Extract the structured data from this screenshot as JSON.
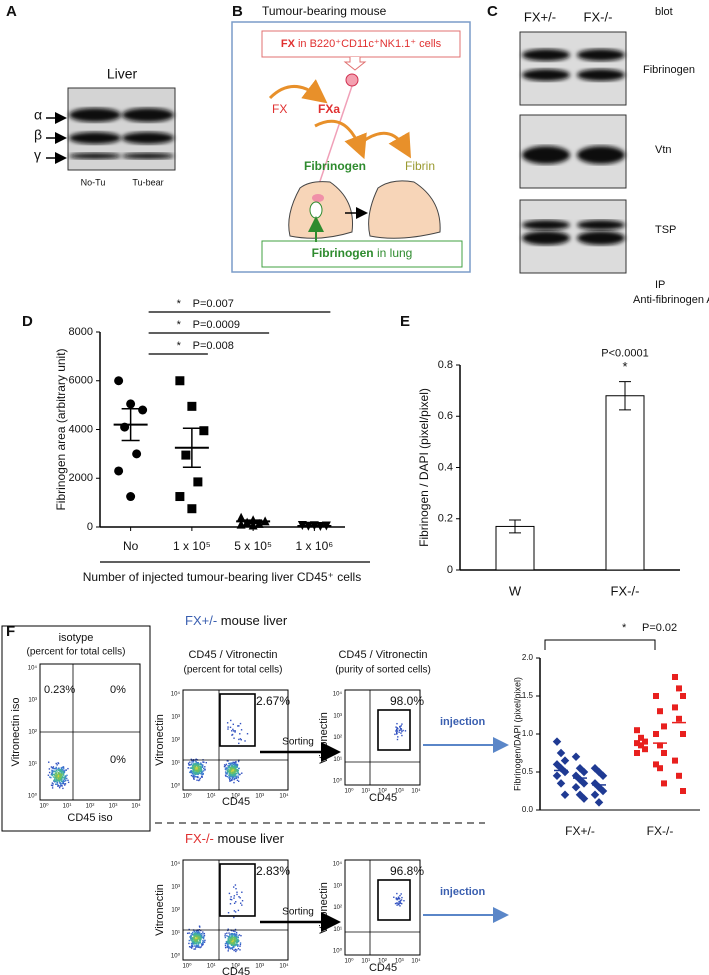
{
  "panel_labels": [
    "A",
    "B",
    "C",
    "D",
    "E",
    "F"
  ],
  "panel_a": {
    "title": "Liver",
    "bands": [
      "α",
      "β",
      "γ"
    ],
    "lanes": [
      "No-Tu",
      "Tu-bear"
    ]
  },
  "panel_b": {
    "title": "Tumour-bearing mouse",
    "cells_box": [
      "FX",
      " in B220⁺CD11c⁺NK1.1⁺ cells"
    ],
    "fx": "FX",
    "fxa": "FXa",
    "fibrinogen": "Fibrinogen",
    "fibrin": "Fibrin",
    "lung_box": [
      "Fibrinogen",
      " in lung"
    ]
  },
  "panel_c": {
    "lanes": [
      "FX+/-",
      "FX-/-"
    ],
    "blot": "blot",
    "proteins": [
      "Fibrinogen",
      "Vtn",
      "TSP"
    ],
    "ip": "IP",
    "antibody": "Anti-fibrinogen Ab"
  },
  "panel_f_flow": {
    "isotype": {
      "title": "isotype",
      "subtitle": "(percent for total cells)",
      "quadrants": [
        "0.23%",
        "0%",
        "0%"
      ],
      "ylabel": "Vitronectin iso",
      "xlabel": "CD45 iso"
    },
    "axis_ticks": [
      "10⁰",
      "10¹",
      "10²",
      "10³",
      "10⁴"
    ],
    "rows": [
      {
        "genotype": "FX+/-",
        "suffix": " mouse liver",
        "gate": "2.67%",
        "purity": "98.0%"
      },
      {
        "genotype": "FX-/-",
        "suffix": " mouse liver",
        "gate": "2.83%",
        "purity": "96.8%"
      }
    ],
    "plot_title": "CD45 / Vitronectin",
    "total_note": "(percent for total cells)",
    "purity_note": "(purity of sorted cells)",
    "sorting": "Sorting",
    "injection": "injection",
    "ylabel": "Vitronectin",
    "xlabel": "CD45"
  },
  "chart_data": [
    {
      "type": "dot-mean-sem",
      "ylabel": "Fibrinogen area (arbitrary unit)",
      "xlabel": "Number of injected tumour-bearing liver CD45⁺ cells",
      "categories": [
        "No",
        "1 x 10⁵",
        "5 x 10⁵",
        "1 x 10⁶"
      ],
      "points": [
        [
          6000,
          5050,
          4800,
          4100,
          3000,
          2300,
          1250
        ],
        [
          6000,
          4950,
          3950,
          2950,
          1850,
          1250,
          750
        ],
        [
          400,
          300,
          250,
          200,
          150,
          120,
          80
        ],
        [
          60,
          50,
          40,
          30,
          20
        ]
      ],
      "markers": [
        "circle",
        "square",
        "triangle",
        "triangle-down"
      ],
      "means": [
        4200,
        3250,
        230,
        40
      ],
      "sems": [
        650,
        800,
        50,
        10
      ],
      "color": "#000000",
      "ylim": [
        0,
        8000
      ],
      "yticks": [
        0,
        2000,
        4000,
        6000,
        8000
      ],
      "comparisons": [
        {
          "mark": "*",
          "label": "P=0.008"
        },
        {
          "mark": "*",
          "label": "P=0.0009"
        },
        {
          "mark": "*",
          "label": "P=0.007"
        }
      ]
    },
    {
      "type": "bar",
      "ylabel": "Fibrinogen / DAPI (pixel/pixel)",
      "categories": [
        "W",
        "FX-/-"
      ],
      "values": [
        0.17,
        0.68
      ],
      "errors": [
        0.025,
        0.055
      ],
      "color": "#ffffff",
      "ylim": [
        0,
        0.8
      ],
      "yticks": [
        0,
        0.2,
        0.4,
        0.6,
        0.8
      ],
      "annotation": {
        "label": "P<0.0001",
        "mark": "*"
      }
    },
    {
      "type": "dot-mean",
      "ylabel": "Fibrinogen/DAPI (pixel/pixel)",
      "categories": [
        "FX+/-",
        "FX-/-"
      ],
      "series": [
        {
          "color": "#1f3a93",
          "values": [
            [
              0.9,
              0.75,
              0.65,
              0.6,
              0.55,
              0.5,
              0.45,
              0.35,
              0.2
            ],
            [
              0.7,
              0.55,
              0.5,
              0.45,
              0.4,
              0.35,
              0.3,
              0.2,
              0.15
            ],
            [
              0.55,
              0.5,
              0.45,
              0.35,
              0.3,
              0.25,
              0.2,
              0.1
            ]
          ],
          "means": [
            0.52,
            0.42,
            0.33
          ]
        },
        {
          "color": "#e8201e",
          "values": [
            [
              1.05,
              0.95,
              0.9,
              0.88,
              0.85,
              0.8,
              0.75
            ],
            [
              1.5,
              1.3,
              1.1,
              1.0,
              0.85,
              0.75,
              0.6,
              0.55,
              0.35
            ],
            [
              1.75,
              1.6,
              1.5,
              1.35,
              1.2,
              1.0,
              0.65,
              0.45,
              0.25
            ]
          ],
          "means": [
            0.88,
            0.88,
            1.15
          ]
        }
      ],
      "ylim": [
        0,
        2
      ],
      "yticks": [
        {
          "value": 0,
          "label": "0.0"
        },
        {
          "value": 0.5,
          "label": "0.5"
        },
        {
          "value": 1,
          "label": "1.0"
        },
        {
          "value": 1.5,
          "label": "1.5"
        },
        {
          "value": 2,
          "label": "2.0"
        }
      ],
      "comparison": {
        "mark": "*",
        "label": "P=0.02"
      }
    }
  ]
}
